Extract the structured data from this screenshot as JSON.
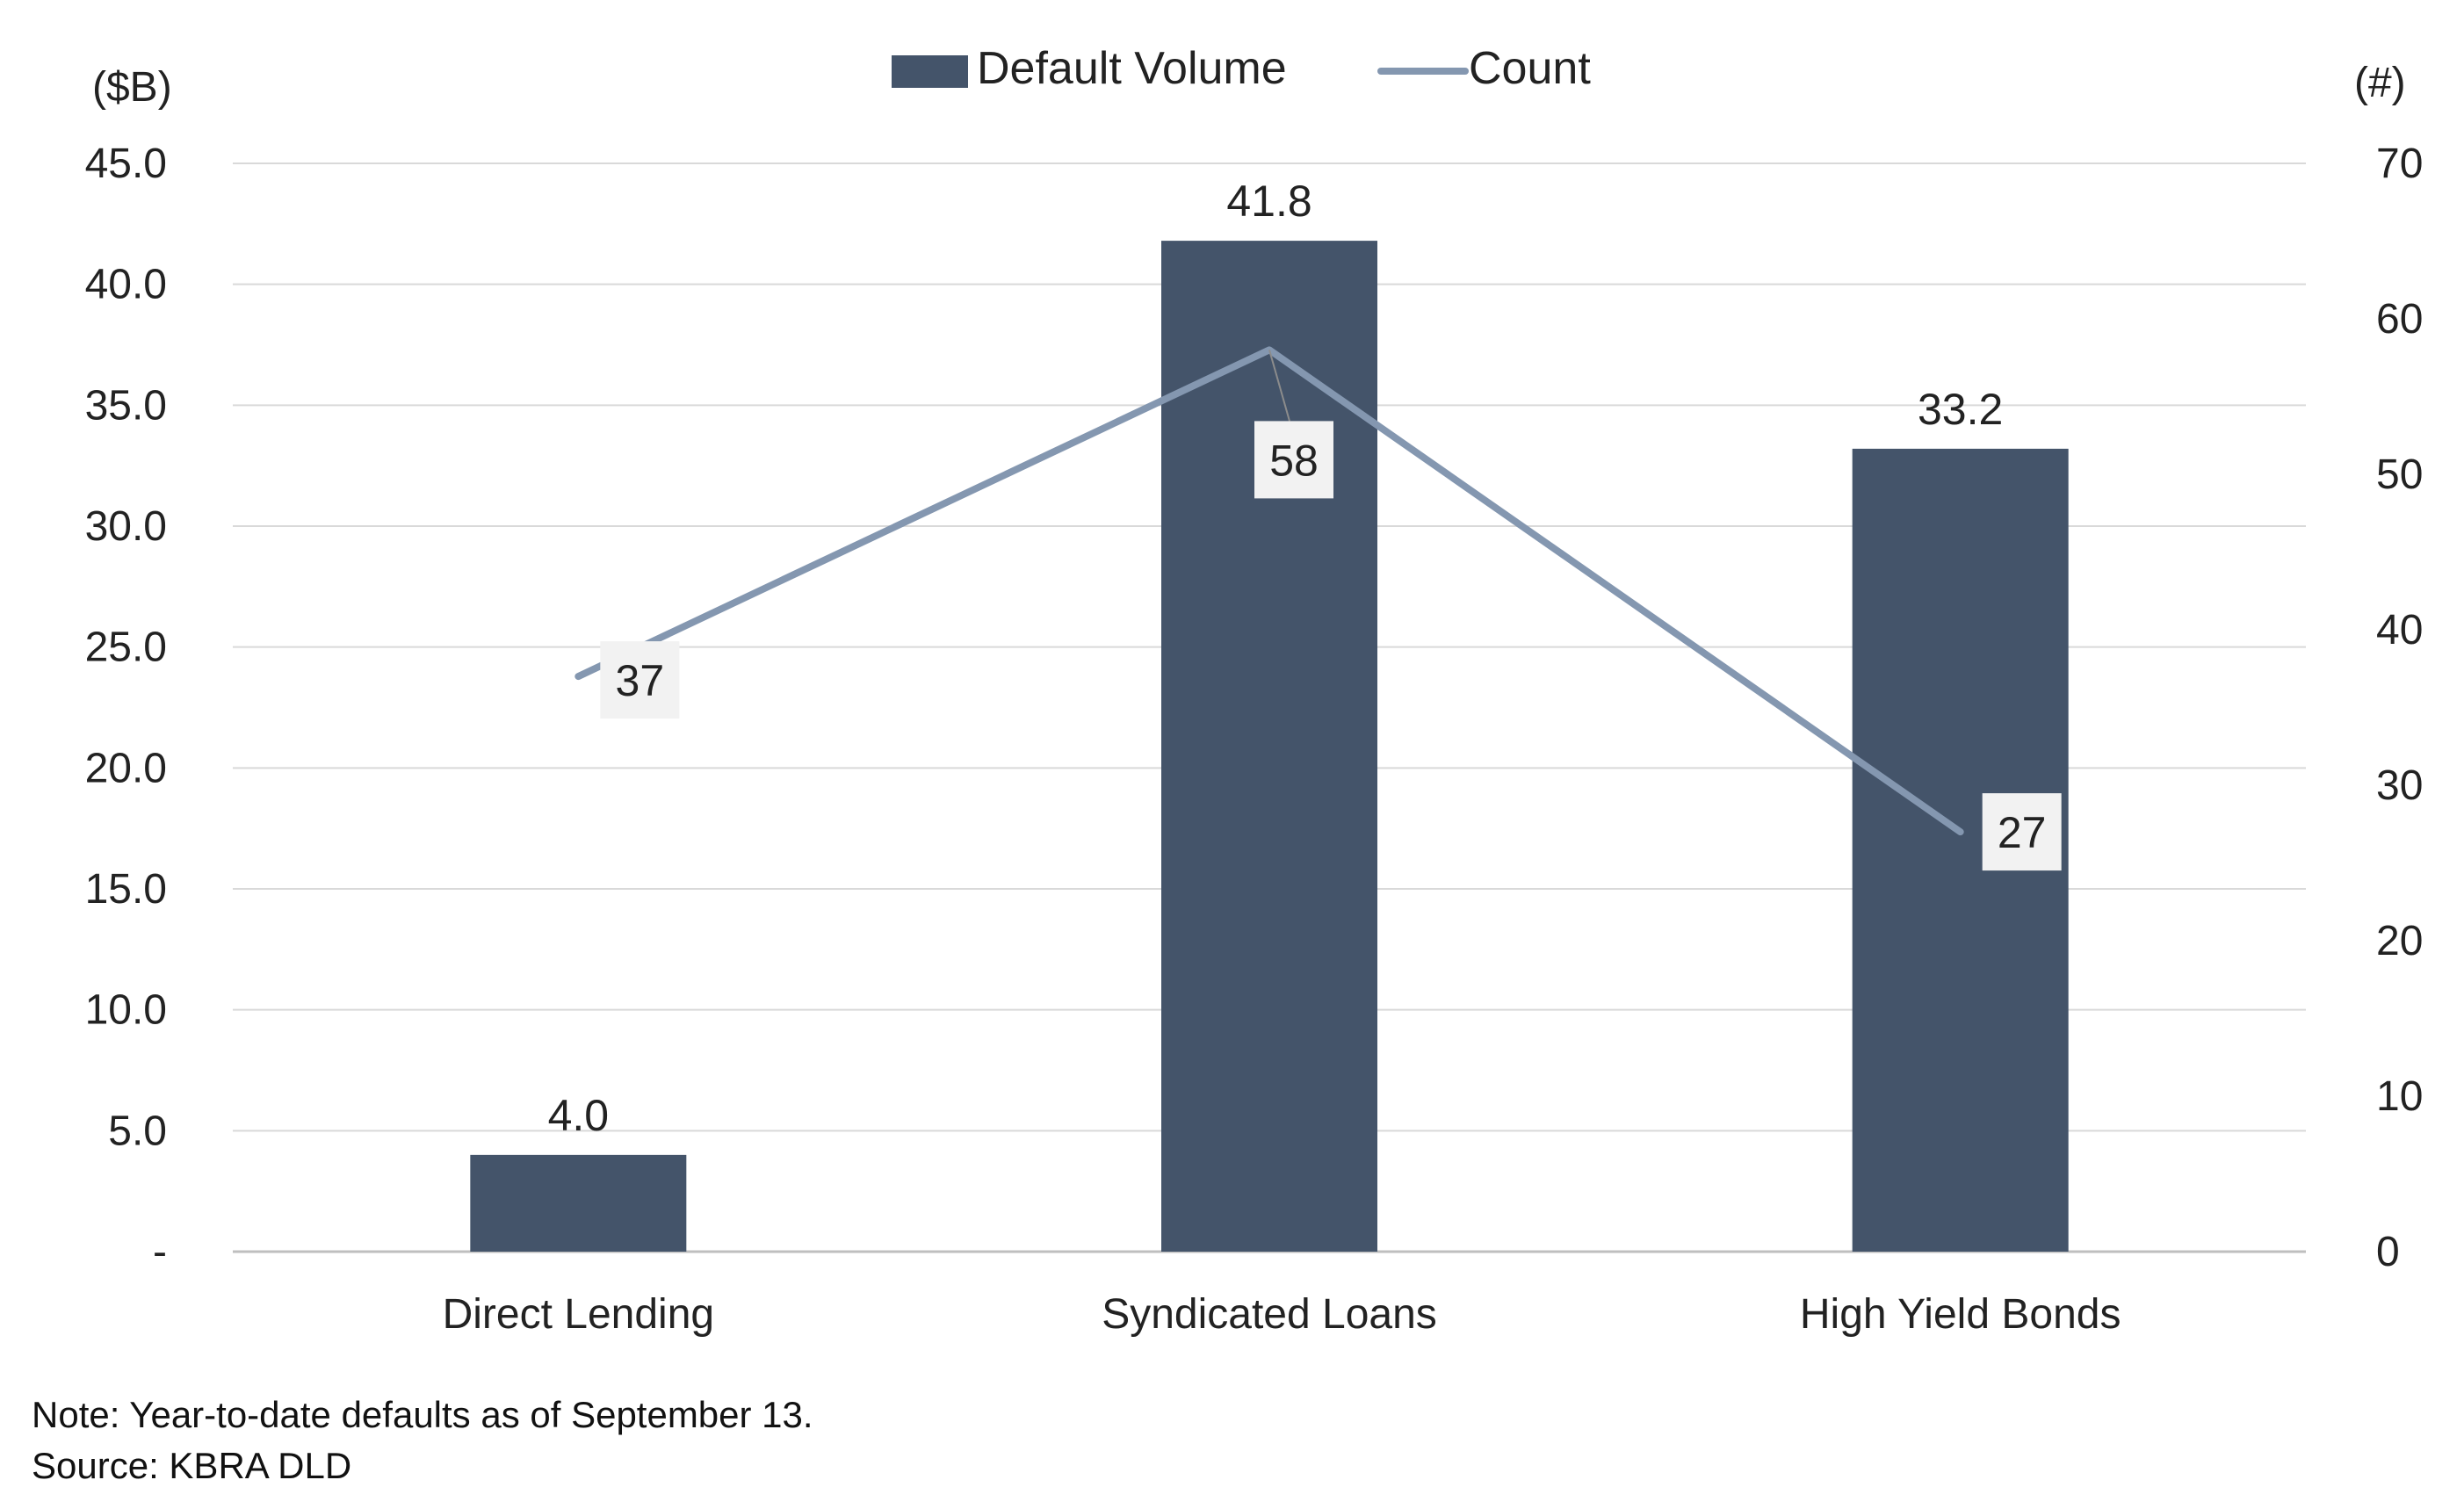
{
  "chart_data": {
    "type": "bar",
    "categories": [
      "Direct Lending",
      "Syndicated Loans",
      "High Yield Bonds"
    ],
    "series": [
      {
        "name": "Default Volume",
        "type": "bar",
        "axis": "left",
        "color": "#44546a",
        "values": [
          4.0,
          41.8,
          33.2
        ],
        "labels": [
          "4.0",
          "41.8",
          "33.2"
        ]
      },
      {
        "name": "Count",
        "type": "line",
        "axis": "right",
        "color": "#8497b0",
        "values": [
          37,
          58,
          27
        ],
        "labels": [
          "37",
          "58",
          "27"
        ]
      }
    ],
    "left_axis": {
      "unit_label": "($B)",
      "range": [
        0,
        45
      ],
      "ticks": [
        0,
        5,
        10,
        15,
        20,
        25,
        30,
        35,
        40,
        45
      ],
      "tick_labels": [
        "-",
        "5.0",
        "10.0",
        "15.0",
        "20.0",
        "25.0",
        "30.0",
        "35.0",
        "40.0",
        "45.0"
      ]
    },
    "right_axis": {
      "unit_label": "(#)",
      "range": [
        0,
        70
      ],
      "ticks": [
        0,
        10,
        20,
        30,
        40,
        50,
        60,
        70
      ],
      "tick_labels": [
        "0",
        "10",
        "20",
        "30",
        "40",
        "50",
        "60",
        "70"
      ]
    },
    "grid": true,
    "legend_position": "top-center"
  },
  "footer": {
    "note": "Note: Year-to-date defaults as of September 13.",
    "source": "Source: KBRA DLD"
  }
}
